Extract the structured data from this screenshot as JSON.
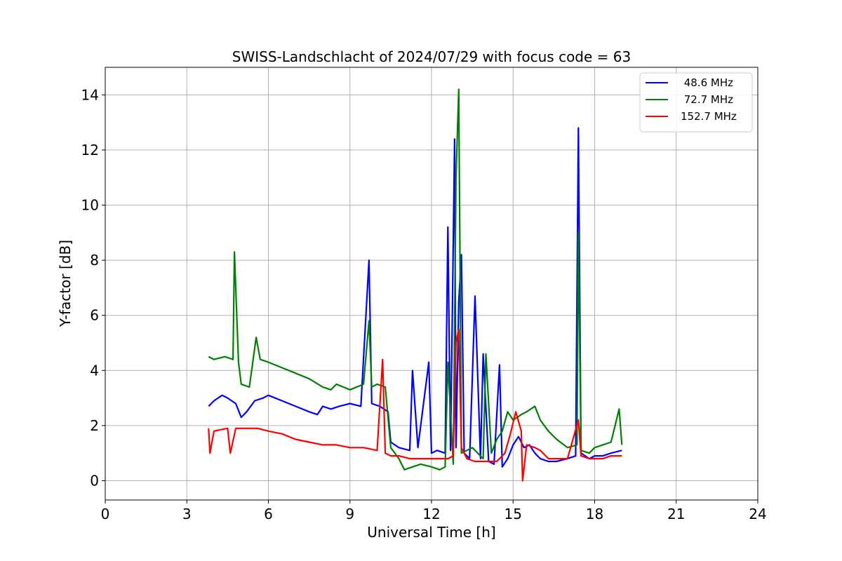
{
  "chart_data": {
    "type": "line",
    "title": "SWISS-Landschlacht of 2024/07/29 with focus code = 63",
    "xlabel": "Universal Time [h]",
    "ylabel": "Y-factor [dB]",
    "xlim": [
      0,
      24
    ],
    "ylim": [
      -0.7,
      15
    ],
    "xticks": [
      0,
      3,
      6,
      9,
      12,
      15,
      18,
      21,
      24
    ],
    "yticks": [
      0,
      2,
      4,
      6,
      8,
      10,
      12,
      14
    ],
    "grid": true,
    "legend_position": "top-right",
    "series": [
      {
        "name": " 48.6 MHz",
        "color": "#0000ff",
        "x": [
          3.8,
          4.0,
          4.3,
          4.5,
          4.8,
          5.0,
          5.2,
          5.5,
          5.8,
          6.0,
          6.5,
          7.0,
          7.5,
          7.8,
          8.0,
          8.3,
          8.6,
          9.0,
          9.4,
          9.7,
          9.8,
          10.1,
          10.4,
          10.5,
          10.8,
          11.2,
          11.3,
          11.5,
          11.9,
          12.0,
          12.2,
          12.5,
          12.6,
          12.7,
          12.85,
          12.9,
          13.0,
          13.1,
          13.2,
          13.4,
          13.6,
          13.8,
          13.9,
          14.1,
          14.3,
          14.5,
          14.6,
          14.8,
          15.0,
          15.2,
          15.4,
          15.6,
          15.8,
          16.0,
          16.3,
          16.6,
          17.0,
          17.3,
          17.4,
          17.5,
          17.8,
          18.0,
          18.3,
          18.6,
          19.0
        ],
        "y": [
          2.7,
          2.9,
          3.1,
          3.0,
          2.8,
          2.3,
          2.5,
          2.9,
          3.0,
          3.1,
          2.9,
          2.7,
          2.5,
          2.4,
          2.7,
          2.6,
          2.7,
          2.8,
          2.7,
          8.0,
          2.8,
          2.7,
          2.5,
          1.4,
          1.2,
          1.1,
          4.0,
          1.2,
          4.3,
          1.0,
          1.1,
          1.0,
          9.2,
          1.1,
          12.4,
          1.2,
          6.5,
          8.2,
          1.0,
          0.8,
          6.7,
          0.8,
          4.6,
          0.7,
          0.6,
          4.2,
          0.5,
          0.8,
          1.3,
          1.6,
          1.2,
          1.3,
          1.0,
          0.8,
          0.7,
          0.7,
          0.8,
          0.9,
          12.8,
          1.0,
          0.8,
          0.9,
          0.9,
          1.0,
          1.1
        ]
      },
      {
        "name": " 72.7 MHz",
        "color": "#008000",
        "x": [
          3.8,
          4.0,
          4.4,
          4.7,
          4.75,
          4.9,
          5.0,
          5.3,
          5.55,
          5.7,
          6.0,
          6.5,
          7.0,
          7.5,
          8.0,
          8.3,
          8.5,
          9.0,
          9.5,
          9.7,
          9.8,
          10.0,
          10.3,
          10.5,
          10.8,
          11.0,
          11.3,
          11.6,
          12.0,
          12.3,
          12.5,
          12.6,
          12.8,
          12.9,
          13.0,
          13.1,
          13.3,
          13.5,
          13.7,
          13.9,
          14.0,
          14.2,
          14.4,
          14.6,
          14.8,
          15.0,
          15.3,
          15.5,
          15.8,
          16.0,
          16.3,
          16.6,
          17.0,
          17.35,
          17.4,
          17.5,
          17.8,
          18.0,
          18.3,
          18.6,
          18.9,
          19.0
        ],
        "y": [
          4.5,
          4.4,
          4.5,
          4.4,
          8.3,
          4.3,
          3.5,
          3.4,
          5.2,
          4.4,
          4.3,
          4.1,
          3.9,
          3.7,
          3.4,
          3.3,
          3.5,
          3.3,
          3.5,
          5.8,
          3.4,
          3.5,
          3.4,
          1.2,
          0.8,
          0.4,
          0.5,
          0.6,
          0.5,
          0.4,
          0.5,
          4.3,
          0.6,
          11.0,
          14.2,
          1.0,
          1.1,
          1.2,
          1.0,
          0.8,
          4.6,
          1.0,
          1.5,
          1.8,
          2.5,
          2.2,
          2.4,
          2.5,
          2.7,
          2.2,
          1.8,
          1.5,
          1.2,
          1.3,
          9.0,
          1.1,
          1.0,
          1.2,
          1.3,
          1.4,
          2.6,
          1.3
        ]
      },
      {
        "name": "152.7 MHz",
        "color": "#ff0000",
        "x": [
          3.8,
          3.85,
          4.0,
          4.5,
          4.6,
          4.8,
          5.0,
          5.3,
          5.6,
          6.0,
          6.5,
          7.0,
          7.5,
          8.0,
          8.5,
          9.0,
          9.5,
          10.0,
          10.2,
          10.3,
          10.5,
          10.8,
          11.2,
          11.5,
          11.8,
          12.0,
          12.3,
          12.6,
          12.8,
          12.9,
          13.0,
          13.1,
          13.3,
          13.6,
          14.0,
          14.4,
          14.7,
          14.9,
          15.1,
          15.3,
          15.35,
          15.5,
          15.8,
          16.0,
          16.3,
          16.6,
          17.0,
          17.4,
          17.5,
          17.8,
          18.0,
          18.3,
          18.6,
          19.0
        ],
        "y": [
          1.9,
          1.0,
          1.8,
          1.9,
          1.0,
          1.9,
          1.9,
          1.9,
          1.9,
          1.8,
          1.7,
          1.5,
          1.4,
          1.3,
          1.3,
          1.2,
          1.2,
          1.1,
          4.4,
          1.0,
          0.9,
          0.9,
          0.8,
          0.8,
          0.8,
          0.8,
          0.8,
          0.8,
          0.9,
          5.0,
          5.5,
          1.2,
          0.8,
          0.7,
          0.7,
          0.7,
          1.0,
          1.7,
          2.5,
          1.8,
          0.0,
          1.3,
          1.2,
          1.1,
          0.8,
          0.8,
          0.8,
          2.2,
          0.9,
          0.8,
          0.8,
          0.8,
          0.9,
          0.9
        ]
      }
    ]
  }
}
